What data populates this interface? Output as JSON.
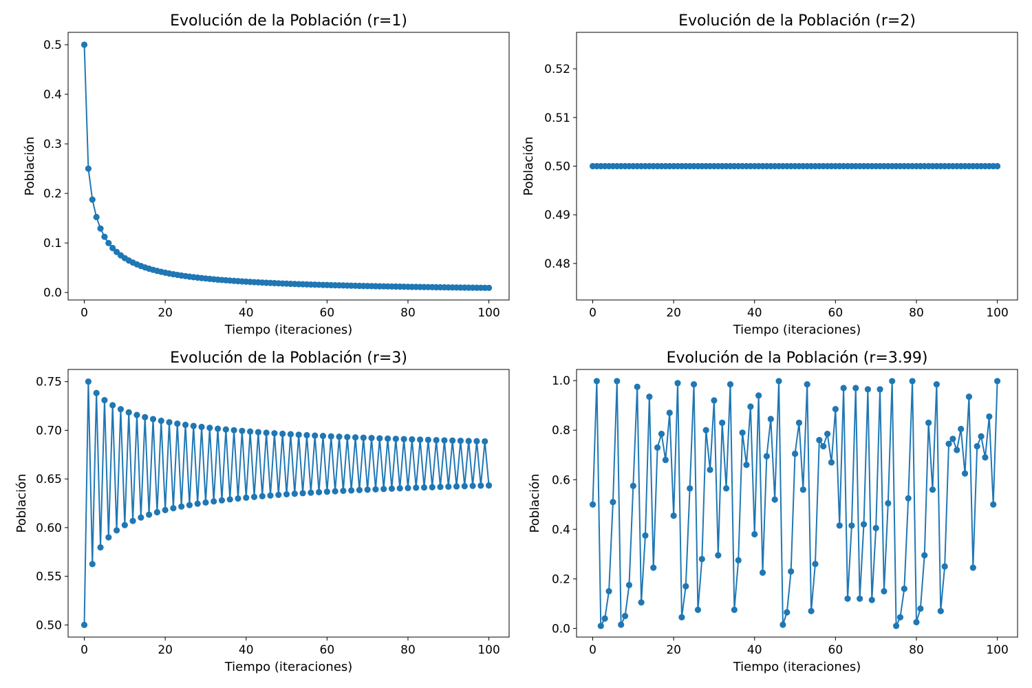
{
  "chart_data": [
    {
      "type": "line",
      "title": "Evolución de la Población (r=1)",
      "xlabel": "Tiempo (iteraciones)",
      "ylabel": "Población",
      "xlim": [
        -4,
        105
      ],
      "ylim": [
        -0.015,
        0.525
      ],
      "xticks": [
        0,
        20,
        40,
        60,
        80,
        100
      ],
      "xtick_labels": [
        "0",
        "20",
        "40",
        "60",
        "80",
        "100"
      ],
      "yticks": [
        0.0,
        0.1,
        0.2,
        0.3,
        0.4,
        0.5
      ],
      "ytick_labels": [
        "0.0",
        "0.1",
        "0.2",
        "0.3",
        "0.4",
        "0.5"
      ],
      "grid": false,
      "color": "#1f77b4",
      "marker": "circle",
      "model": {
        "r": 1,
        "x0": 0.5,
        "steps": 100
      }
    },
    {
      "type": "line",
      "title": "Evolución de la Población (r=2)",
      "xlabel": "Tiempo (iteraciones)",
      "ylabel": "Población",
      "xlim": [
        -4,
        105
      ],
      "ylim": [
        0.4725,
        0.5275
      ],
      "xticks": [
        0,
        20,
        40,
        60,
        80,
        100
      ],
      "xtick_labels": [
        "0",
        "20",
        "40",
        "60",
        "80",
        "100"
      ],
      "yticks": [
        0.48,
        0.49,
        0.5,
        0.51,
        0.52
      ],
      "ytick_labels": [
        "0.48",
        "0.49",
        "0.50",
        "0.51",
        "0.52"
      ],
      "grid": false,
      "color": "#1f77b4",
      "marker": "circle",
      "model": {
        "r": 2,
        "x0": 0.5,
        "steps": 100
      }
    },
    {
      "type": "line",
      "title": "Evolución de la Población (r=3)",
      "xlabel": "Tiempo (iteraciones)",
      "ylabel": "Población",
      "xlim": [
        -4,
        105
      ],
      "ylim": [
        0.4875,
        0.7625
      ],
      "xticks": [
        0,
        20,
        40,
        60,
        80,
        100
      ],
      "xtick_labels": [
        "0",
        "20",
        "40",
        "60",
        "80",
        "100"
      ],
      "yticks": [
        0.5,
        0.55,
        0.6,
        0.65,
        0.7,
        0.75
      ],
      "ytick_labels": [
        "0.50",
        "0.55",
        "0.60",
        "0.65",
        "0.70",
        "0.75"
      ],
      "grid": false,
      "color": "#1f77b4",
      "marker": "circle",
      "model": {
        "r": 3,
        "x0": 0.5,
        "steps": 100
      }
    },
    {
      "type": "line",
      "title": "Evolución de la Población (r=3.99)",
      "xlabel": "Tiempo (iteraciones)",
      "ylabel": "Población",
      "xlim": [
        -4,
        105
      ],
      "ylim": [
        -0.035,
        1.045
      ],
      "xticks": [
        0,
        20,
        40,
        60,
        80,
        100
      ],
      "xtick_labels": [
        "0",
        "20",
        "40",
        "60",
        "80",
        "100"
      ],
      "yticks": [
        0.0,
        0.2,
        0.4,
        0.6,
        0.8,
        1.0
      ],
      "ytick_labels": [
        "0.0",
        "0.2",
        "0.4",
        "0.6",
        "0.8",
        "1.0"
      ],
      "grid": false,
      "color": "#1f77b4",
      "marker": "circle",
      "x": [
        0,
        1,
        2,
        3,
        4,
        5,
        6,
        7,
        8,
        9,
        10,
        11,
        12,
        13,
        14,
        15,
        16,
        17,
        18,
        19,
        20,
        21,
        22,
        23,
        24,
        25,
        26,
        27,
        28,
        29,
        30,
        31,
        32,
        33,
        34,
        35,
        36,
        37,
        38,
        39,
        40,
        41,
        42,
        43,
        44,
        45,
        46,
        47,
        48,
        49,
        50,
        51,
        52,
        53,
        54,
        55,
        56,
        57,
        58,
        59,
        60,
        61,
        62,
        63,
        64,
        65,
        66,
        67,
        68,
        69,
        70,
        71,
        72,
        73,
        74,
        75,
        76,
        77,
        78,
        79,
        80,
        81,
        82,
        83,
        84,
        85,
        86,
        87,
        88,
        89,
        90,
        91,
        92,
        93,
        94,
        95,
        96,
        97,
        98,
        99,
        100
      ],
      "y": [
        0.5,
        0.998,
        0.01,
        0.04,
        0.15,
        0.51,
        0.998,
        0.015,
        0.05,
        0.175,
        0.575,
        0.975,
        0.105,
        0.375,
        0.935,
        0.245,
        0.73,
        0.785,
        0.68,
        0.87,
        0.455,
        0.99,
        0.045,
        0.17,
        0.565,
        0.985,
        0.075,
        0.28,
        0.8,
        0.64,
        0.92,
        0.295,
        0.83,
        0.565,
        0.985,
        0.075,
        0.275,
        0.79,
        0.66,
        0.895,
        0.38,
        0.94,
        0.225,
        0.695,
        0.845,
        0.52,
        0.998,
        0.015,
        0.065,
        0.23,
        0.705,
        0.83,
        0.56,
        0.985,
        0.07,
        0.26,
        0.76,
        0.735,
        0.785,
        0.67,
        0.885,
        0.415,
        0.97,
        0.12,
        0.415,
        0.97,
        0.12,
        0.42,
        0.965,
        0.115,
        0.405,
        0.965,
        0.15,
        0.505,
        0.998,
        0.01,
        0.045,
        0.16,
        0.525,
        0.998,
        0.025,
        0.08,
        0.295,
        0.83,
        0.56,
        0.985,
        0.07,
        0.25,
        0.745,
        0.765,
        0.72,
        0.805,
        0.625,
        0.935,
        0.245,
        0.735,
        0.775,
        0.69,
        0.855,
        0.5,
        0.998
      ]
    }
  ]
}
